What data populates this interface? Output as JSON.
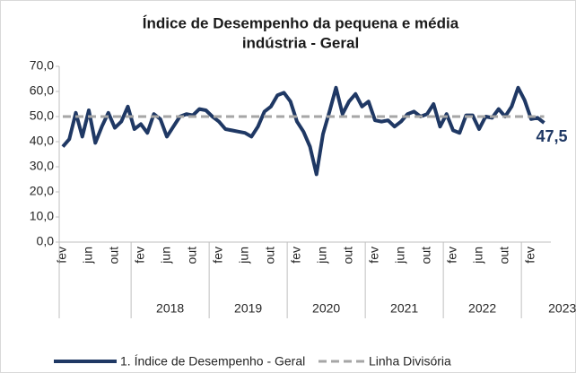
{
  "chart_data": {
    "type": "line",
    "title": [
      "Índice de Desempenho da pequena e média",
      "indústria - Geral"
    ],
    "categories": [
      "fev",
      null,
      null,
      null,
      "jun",
      null,
      null,
      null,
      "out",
      null,
      null,
      null,
      "fev",
      null,
      null,
      null,
      "jun",
      null,
      null,
      null,
      "out",
      null,
      null,
      null,
      "fev",
      null,
      null,
      null,
      "jun",
      null,
      null,
      null,
      "out",
      null,
      null,
      null,
      "fev",
      null,
      null,
      null,
      "jun",
      null,
      null,
      null,
      "out",
      null,
      null,
      null,
      "fev",
      null,
      null,
      null,
      "jun",
      null,
      null,
      null,
      "out",
      null,
      null,
      null,
      "fev",
      null,
      null,
      null,
      "jun",
      null,
      null,
      null,
      "out",
      null,
      null,
      null,
      "fev",
      null,
      null
    ],
    "year_labels": [
      "2018",
      "2019",
      "2020",
      "2021",
      "2022",
      "2023"
    ],
    "series": [
      {
        "name": "1. Índice de Desempenho - Geral",
        "color": "#1f3864",
        "style": "solid",
        "values": [
          38,
          41,
          51.5,
          42,
          52.5,
          39.5,
          46,
          51.5,
          45.5,
          48,
          54,
          45,
          47,
          43.5,
          51,
          49,
          42,
          46,
          50,
          51,
          50.5,
          53,
          52.5,
          50,
          48,
          45,
          44.5,
          44,
          43.5,
          42,
          46,
          52,
          54,
          58.5,
          59.5,
          56,
          48,
          44,
          38,
          27,
          43,
          52,
          61.5,
          51,
          56,
          59,
          54,
          56,
          48.5,
          48,
          48.5,
          46,
          48,
          51,
          52,
          50,
          51,
          55,
          46,
          51,
          44.5,
          43.5,
          50.5,
          50.5,
          45,
          50,
          49.5,
          53,
          50,
          54,
          61.5,
          56.5,
          49,
          49.5,
          47.5
        ]
      },
      {
        "name": "Linha Divisória",
        "color": "#a6a6a6",
        "style": "dashed",
        "values": [
          50,
          50,
          50,
          50,
          50,
          50,
          50,
          50,
          50,
          50,
          50,
          50,
          50,
          50,
          50,
          50,
          50,
          50,
          50,
          50,
          50,
          50,
          50,
          50,
          50,
          50,
          50,
          50,
          50,
          50,
          50,
          50,
          50,
          50,
          50,
          50,
          50,
          50,
          50,
          50,
          50,
          50,
          50,
          50,
          50,
          50,
          50,
          50,
          50,
          50,
          50,
          50,
          50,
          50,
          50,
          50,
          50,
          50,
          50,
          50,
          50,
          50,
          50,
          50,
          50,
          50,
          50,
          50,
          50,
          50,
          50,
          50,
          50,
          50,
          50
        ]
      }
    ],
    "end_label": {
      "value": 47.5,
      "label": "47,5"
    },
    "ylim": [
      0,
      70
    ],
    "yticks": [
      {
        "value": 0,
        "label": "0,0"
      },
      {
        "value": 10,
        "label": "10,0"
      },
      {
        "value": 20,
        "label": "20,0"
      },
      {
        "value": 30,
        "label": "30,0"
      },
      {
        "value": 40,
        "label": "40,0"
      },
      {
        "value": 50,
        "label": "50,0"
      },
      {
        "value": 60,
        "label": "60,0"
      },
      {
        "value": 70,
        "label": "70,0"
      }
    ],
    "grid": false
  }
}
